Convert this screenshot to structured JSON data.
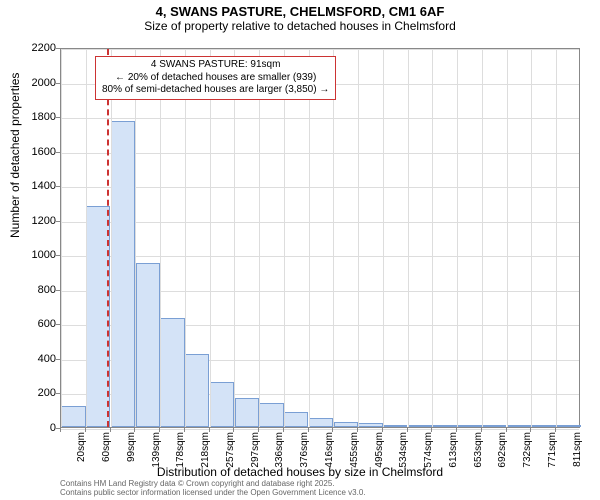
{
  "title": "4, SWANS PASTURE, CHELMSFORD, CM1 6AF",
  "subtitle": "Size of property relative to detached houses in Chelmsford",
  "chart": {
    "type": "histogram",
    "background_color": "#ffffff",
    "grid_color": "#dddddd",
    "border_color": "#888888",
    "bar_fill": "#d4e3f7",
    "bar_stroke": "#7a9fd4",
    "ylabel": "Number of detached properties",
    "xlabel": "Distribution of detached houses by size in Chelmsford",
    "ylim": [
      0,
      2200
    ],
    "ytick_step": 200,
    "yticks": [
      0,
      200,
      400,
      600,
      800,
      1000,
      1200,
      1400,
      1600,
      1800,
      2000,
      2200
    ],
    "xticks": [
      "20sqm",
      "60sqm",
      "99sqm",
      "139sqm",
      "178sqm",
      "218sqm",
      "257sqm",
      "297sqm",
      "336sqm",
      "376sqm",
      "416sqm",
      "455sqm",
      "495sqm",
      "534sqm",
      "574sqm",
      "613sqm",
      "653sqm",
      "692sqm",
      "732sqm",
      "771sqm",
      "811sqm"
    ],
    "xtick_rotation": -90,
    "bars": [
      120,
      1280,
      1770,
      950,
      630,
      420,
      260,
      170,
      140,
      85,
      55,
      30,
      22,
      12,
      8,
      6,
      4,
      3,
      2,
      2,
      1
    ],
    "label_fontsize": 12,
    "tick_fontsize": 11
  },
  "annotation": {
    "lines": {
      "l1": "4 SWANS PASTURE: 91sqm",
      "l2": "← 20% of detached houses are smaller (939)",
      "l3": "80% of semi-detached houses are larger (3,850) →"
    },
    "box_border": "#cc3333",
    "ref_value_sqm": 91,
    "ref_line_color": "#cc3333",
    "ref_line_dash": "dashed"
  },
  "footer": {
    "l1": "Contains HM Land Registry data © Crown copyright and database right 2025.",
    "l2": "Contains public sector information licensed under the Open Government Licence v3.0."
  }
}
